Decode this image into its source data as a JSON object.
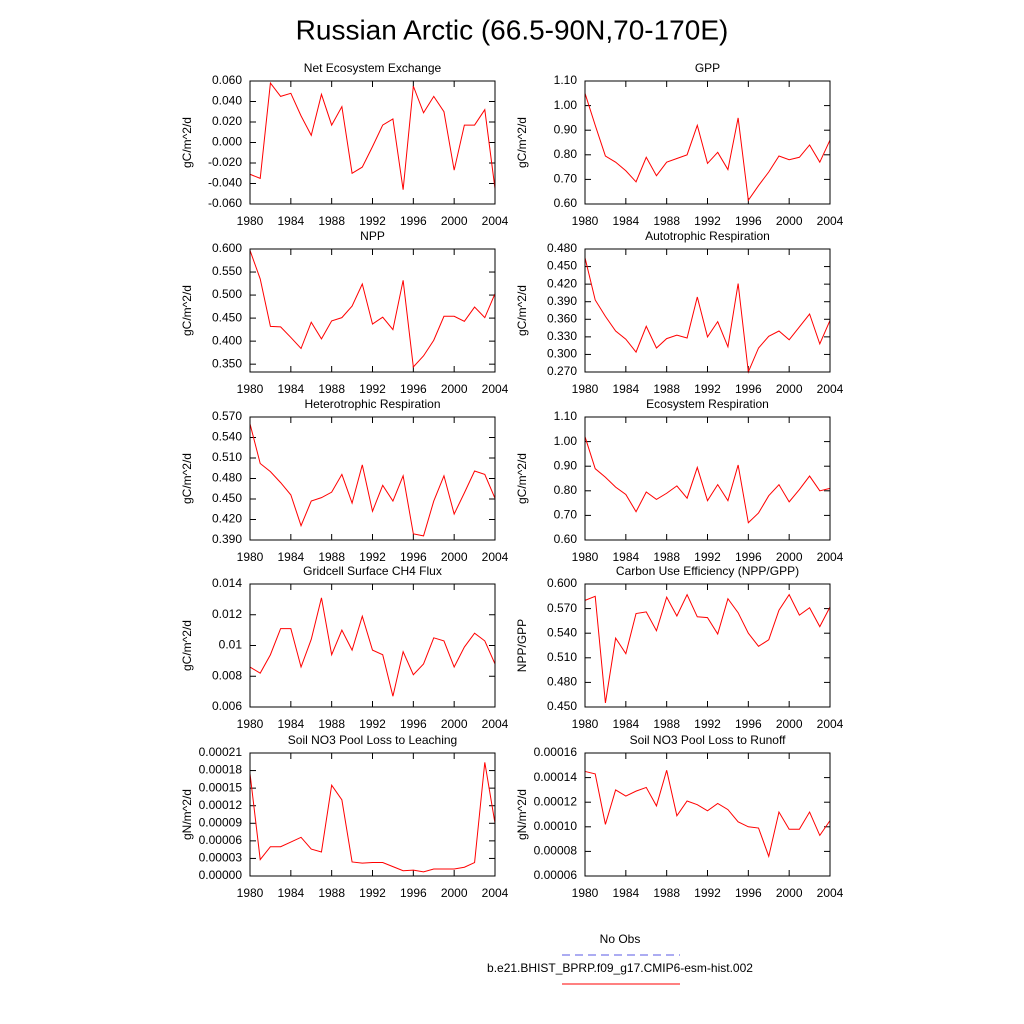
{
  "title": "Russian Arctic (66.5-90N,70-170E)",
  "legend": [
    {
      "name": "No Obs",
      "color": "#5a5ae6",
      "dash": true
    },
    {
      "name": "b.e21.BHIST_BPRP.f09_g17.CMIP6-esm-hist.002",
      "color": "#ff0000",
      "dash": false
    }
  ],
  "chart_data": [
    {
      "type": "line",
      "title": "Net Ecosystem Exchange",
      "y_label": "gC/m^2/d",
      "color": "#ff0000",
      "x": [
        1980,
        1981,
        1982,
        1983,
        1984,
        1985,
        1986,
        1987,
        1988,
        1989,
        1990,
        1991,
        1992,
        1993,
        1994,
        1995,
        1996,
        1997,
        1998,
        1999,
        2000,
        2001,
        2002,
        2003,
        2004
      ],
      "values": [
        -0.031,
        -0.035,
        0.058,
        0.045,
        0.048,
        0.026,
        0.007,
        0.047,
        0.017,
        0.035,
        -0.03,
        -0.024,
        -0.004,
        0.017,
        0.023,
        -0.046,
        0.055,
        0.029,
        0.045,
        0.03,
        -0.027,
        0.017,
        0.017,
        0.032,
        -0.045
      ],
      "xlim": [
        1980,
        2004
      ],
      "xticks": [
        1980,
        1984,
        1988,
        1992,
        1996,
        2000,
        2004
      ],
      "ylim": [
        -0.06,
        0.06
      ],
      "yticks": [
        {
          "value": -0.06,
          "label": "-0.060"
        },
        {
          "value": -0.04,
          "label": "-0.040"
        },
        {
          "value": -0.02,
          "label": "-0.020"
        },
        {
          "value": 0,
          "label": "0.000"
        },
        {
          "value": 0.02,
          "label": "0.020"
        },
        {
          "value": 0.04,
          "label": "0.040"
        },
        {
          "value": 0.06,
          "label": "0.060"
        }
      ]
    },
    {
      "type": "line",
      "title": "GPP",
      "y_label": "gC/m^2/d",
      "color": "#ff0000",
      "x": [
        1980,
        1981,
        1982,
        1983,
        1984,
        1985,
        1986,
        1987,
        1988,
        1989,
        1990,
        1991,
        1992,
        1993,
        1994,
        1995,
        1996,
        1997,
        1998,
        1999,
        2000,
        2001,
        2002,
        2003,
        2004
      ],
      "values": [
        1.05,
        0.92,
        0.795,
        0.77,
        0.735,
        0.69,
        0.79,
        0.715,
        0.77,
        0.785,
        0.8,
        0.92,
        0.765,
        0.81,
        0.74,
        0.95,
        0.615,
        0.675,
        0.73,
        0.795,
        0.78,
        0.79,
        0.84,
        0.77,
        0.86
      ],
      "xlim": [
        1980,
        2004
      ],
      "xticks": [
        1980,
        1984,
        1988,
        1992,
        1996,
        2000,
        2004
      ],
      "ylim": [
        0.6,
        1.1
      ],
      "yticks": [
        {
          "value": 0.6,
          "label": "0.60"
        },
        {
          "value": 0.7,
          "label": "0.70"
        },
        {
          "value": 0.8,
          "label": "0.80"
        },
        {
          "value": 0.9,
          "label": "0.90"
        },
        {
          "value": 1.0,
          "label": "1.00"
        },
        {
          "value": 1.1,
          "label": "1.10"
        }
      ]
    },
    {
      "type": "line",
      "title": "NPP",
      "y_label": "gC/m^2/d",
      "color": "#ff0000",
      "x": [
        1980,
        1981,
        1982,
        1983,
        1984,
        1985,
        1986,
        1987,
        1988,
        1989,
        1990,
        1991,
        1992,
        1993,
        1994,
        1995,
        1996,
        1997,
        1998,
        1999,
        2000,
        2001,
        2002,
        2003,
        2004
      ],
      "values": [
        0.597,
        0.535,
        0.432,
        0.431,
        0.408,
        0.384,
        0.441,
        0.405,
        0.444,
        0.451,
        0.476,
        0.524,
        0.437,
        0.452,
        0.425,
        0.532,
        0.344,
        0.368,
        0.402,
        0.454,
        0.454,
        0.443,
        0.474,
        0.451,
        0.503
      ],
      "xlim": [
        1980,
        2004
      ],
      "xticks": [
        1980,
        1984,
        1988,
        1992,
        1996,
        2000,
        2004
      ],
      "ylim": [
        0.333,
        0.6
      ],
      "yticks": [
        {
          "value": 0.35,
          "label": "0.350"
        },
        {
          "value": 0.4,
          "label": "0.400"
        },
        {
          "value": 0.45,
          "label": "0.450"
        },
        {
          "value": 0.5,
          "label": "0.500"
        },
        {
          "value": 0.55,
          "label": "0.550"
        },
        {
          "value": 0.6,
          "label": "0.600"
        }
      ]
    },
    {
      "type": "line",
      "title": "Autotrophic Respiration",
      "y_label": "gC/m^2/d",
      "color": "#ff0000",
      "x": [
        1980,
        1981,
        1982,
        1983,
        1984,
        1985,
        1986,
        1987,
        1988,
        1989,
        1990,
        1991,
        1992,
        1993,
        1994,
        1995,
        1996,
        1997,
        1998,
        1999,
        2000,
        2001,
        2002,
        2003,
        2004
      ],
      "values": [
        0.465,
        0.393,
        0.365,
        0.34,
        0.326,
        0.304,
        0.348,
        0.311,
        0.327,
        0.333,
        0.328,
        0.398,
        0.33,
        0.356,
        0.313,
        0.421,
        0.27,
        0.311,
        0.331,
        0.34,
        0.325,
        0.347,
        0.369,
        0.318,
        0.358
      ],
      "xlim": [
        1980,
        2004
      ],
      "xticks": [
        1980,
        1984,
        1988,
        1992,
        1996,
        2000,
        2004
      ],
      "ylim": [
        0.27,
        0.48
      ],
      "yticks": [
        {
          "value": 0.27,
          "label": "0.270"
        },
        {
          "value": 0.3,
          "label": "0.300"
        },
        {
          "value": 0.33,
          "label": "0.330"
        },
        {
          "value": 0.36,
          "label": "0.360"
        },
        {
          "value": 0.39,
          "label": "0.390"
        },
        {
          "value": 0.42,
          "label": "0.420"
        },
        {
          "value": 0.45,
          "label": "0.450"
        },
        {
          "value": 0.48,
          "label": "0.480"
        }
      ]
    },
    {
      "type": "line",
      "title": "Heterotrophic Respiration",
      "y_label": "gC/m^2/d",
      "color": "#ff0000",
      "x": [
        1980,
        1981,
        1982,
        1983,
        1984,
        1985,
        1986,
        1987,
        1988,
        1989,
        1990,
        1991,
        1992,
        1993,
        1994,
        1995,
        1996,
        1997,
        1998,
        1999,
        2000,
        2001,
        2002,
        2003,
        2004
      ],
      "values": [
        0.56,
        0.502,
        0.49,
        0.474,
        0.456,
        0.411,
        0.447,
        0.452,
        0.46,
        0.486,
        0.444,
        0.5,
        0.432,
        0.47,
        0.447,
        0.484,
        0.399,
        0.396,
        0.447,
        0.484,
        0.428,
        0.459,
        0.491,
        0.486,
        0.451
      ],
      "xlim": [
        1980,
        2004
      ],
      "xticks": [
        1980,
        1984,
        1988,
        1992,
        1996,
        2000,
        2004
      ],
      "ylim": [
        0.39,
        0.57
      ],
      "yticks": [
        {
          "value": 0.39,
          "label": "0.390"
        },
        {
          "value": 0.42,
          "label": "0.420"
        },
        {
          "value": 0.45,
          "label": "0.450"
        },
        {
          "value": 0.48,
          "label": "0.480"
        },
        {
          "value": 0.51,
          "label": "0.510"
        },
        {
          "value": 0.54,
          "label": "0.540"
        },
        {
          "value": 0.57,
          "label": "0.570"
        }
      ]
    },
    {
      "type": "line",
      "title": "Ecosystem Respiration",
      "y_label": "gC/m^2/d",
      "color": "#ff0000",
      "x": [
        1980,
        1981,
        1982,
        1983,
        1984,
        1985,
        1986,
        1987,
        1988,
        1989,
        1990,
        1991,
        1992,
        1993,
        1994,
        1995,
        1996,
        1997,
        1998,
        1999,
        2000,
        2001,
        2002,
        2003,
        2004
      ],
      "values": [
        1.02,
        0.89,
        0.855,
        0.815,
        0.785,
        0.715,
        0.795,
        0.765,
        0.79,
        0.82,
        0.77,
        0.895,
        0.76,
        0.825,
        0.76,
        0.905,
        0.67,
        0.71,
        0.78,
        0.825,
        0.755,
        0.805,
        0.86,
        0.8,
        0.81
      ],
      "xlim": [
        1980,
        2004
      ],
      "xticks": [
        1980,
        1984,
        1988,
        1992,
        1996,
        2000,
        2004
      ],
      "ylim": [
        0.6,
        1.1
      ],
      "yticks": [
        {
          "value": 0.6,
          "label": "0.60"
        },
        {
          "value": 0.7,
          "label": "0.70"
        },
        {
          "value": 0.8,
          "label": "0.80"
        },
        {
          "value": 0.9,
          "label": "0.90"
        },
        {
          "value": 1.0,
          "label": "1.00"
        },
        {
          "value": 1.1,
          "label": "1.10"
        }
      ]
    },
    {
      "type": "line",
      "title": "Gridcell Surface CH4 Flux",
      "y_label": "gC/m^2/d",
      "color": "#ff0000",
      "x": [
        1980,
        1981,
        1982,
        1983,
        1984,
        1985,
        1986,
        1987,
        1988,
        1989,
        1990,
        1991,
        1992,
        1993,
        1994,
        1995,
        1996,
        1997,
        1998,
        1999,
        2000,
        2001,
        2002,
        2003,
        2004
      ],
      "values": [
        0.0086,
        0.0082,
        0.0094,
        0.0111,
        0.0111,
        0.0086,
        0.0104,
        0.0131,
        0.0094,
        0.011,
        0.0097,
        0.0119,
        0.0097,
        0.0094,
        0.0067,
        0.0096,
        0.0081,
        0.0088,
        0.0105,
        0.0103,
        0.0086,
        0.0099,
        0.0108,
        0.0103,
        0.0088
      ],
      "xlim": [
        1980,
        2004
      ],
      "xticks": [
        1980,
        1984,
        1988,
        1992,
        1996,
        2000,
        2004
      ],
      "ylim": [
        0.006,
        0.014
      ],
      "yticks": [
        0.006,
        0.008,
        0.01,
        0.012,
        0.014
      ]
    },
    {
      "type": "line",
      "title": "Carbon Use Efficiency (NPP/GPP)",
      "y_label": "NPP/GPP",
      "color": "#ff0000",
      "x": [
        1980,
        1981,
        1982,
        1983,
        1984,
        1985,
        1986,
        1987,
        1988,
        1989,
        1990,
        1991,
        1992,
        1993,
        1994,
        1995,
        1996,
        1997,
        1998,
        1999,
        2000,
        2001,
        2002,
        2003,
        2004
      ],
      "values": [
        0.58,
        0.585,
        0.455,
        0.534,
        0.515,
        0.564,
        0.566,
        0.543,
        0.584,
        0.561,
        0.587,
        0.56,
        0.559,
        0.539,
        0.582,
        0.565,
        0.54,
        0.524,
        0.532,
        0.568,
        0.587,
        0.562,
        0.571,
        0.548,
        0.572
      ],
      "xlim": [
        1980,
        2004
      ],
      "xticks": [
        1980,
        1984,
        1988,
        1992,
        1996,
        2000,
        2004
      ],
      "ylim": [
        0.45,
        0.6
      ],
      "yticks": [
        {
          "value": 0.45,
          "label": "0.450"
        },
        {
          "value": 0.48,
          "label": "0.480"
        },
        {
          "value": 0.51,
          "label": "0.510"
        },
        {
          "value": 0.54,
          "label": "0.540"
        },
        {
          "value": 0.57,
          "label": "0.570"
        },
        {
          "value": 0.6,
          "label": "0.600"
        }
      ]
    },
    {
      "type": "line",
      "title": "Soil NO3 Pool Loss to Leaching",
      "y_label": "gN/m^2/d",
      "color": "#ff0000",
      "x": [
        1980,
        1981,
        1982,
        1983,
        1984,
        1985,
        1986,
        1987,
        1988,
        1989,
        1990,
        1991,
        1992,
        1993,
        1994,
        1995,
        1996,
        1997,
        1998,
        1999,
        2000,
        2001,
        2002,
        2003,
        2004
      ],
      "values": [
        0.000175,
        2.8e-05,
        5e-05,
        5e-05,
        5.8e-05,
        6.6e-05,
        4.6e-05,
        4.1e-05,
        0.000155,
        0.00013,
        2.4e-05,
        2.2e-05,
        2.3e-05,
        2.3e-05,
        1.6e-05,
        9e-06,
        1e-05,
        7e-06,
        1.2e-05,
        1.2e-05,
        1.2e-05,
        1.5e-05,
        2.3e-05,
        0.000194,
        9e-05
      ],
      "xlim": [
        1980,
        2004
      ],
      "xticks": [
        1980,
        1984,
        1988,
        1992,
        1996,
        2000,
        2004
      ],
      "ylim": [
        0,
        0.00021
      ],
      "yticks": [
        {
          "value": 0,
          "label": "0.00000"
        },
        3e-05,
        6e-05,
        9e-05,
        0.00012,
        0.00015,
        0.00018,
        0.00021
      ]
    },
    {
      "type": "line",
      "title": "Soil NO3 Pool Loss to Runoff",
      "y_label": "gN/m^2/d",
      "color": "#ff0000",
      "x": [
        1980,
        1981,
        1982,
        1983,
        1984,
        1985,
        1986,
        1987,
        1988,
        1989,
        1990,
        1991,
        1992,
        1993,
        1994,
        1995,
        1996,
        1997,
        1998,
        1999,
        2000,
        2001,
        2002,
        2003,
        2004
      ],
      "values": [
        0.000145,
        0.000143,
        0.000102,
        0.00013,
        0.000125,
        0.000129,
        0.000132,
        0.000117,
        0.000146,
        0.000109,
        0.000121,
        0.000118,
        0.000113,
        0.000119,
        0.000114,
        0.000104,
        0.0001,
        9.9e-05,
        7.6e-05,
        0.000112,
        9.8e-05,
        9.8e-05,
        0.000112,
        9.3e-05,
        0.000105
      ],
      "xlim": [
        1980,
        2004
      ],
      "xticks": [
        1980,
        1984,
        1988,
        1992,
        1996,
        2000,
        2004
      ],
      "ylim": [
        6e-05,
        0.00016
      ],
      "yticks": [
        6e-05,
        8e-05,
        {
          "value": 0.0001,
          "label": "0.00010"
        },
        0.00012,
        0.00014,
        0.00016
      ]
    }
  ]
}
